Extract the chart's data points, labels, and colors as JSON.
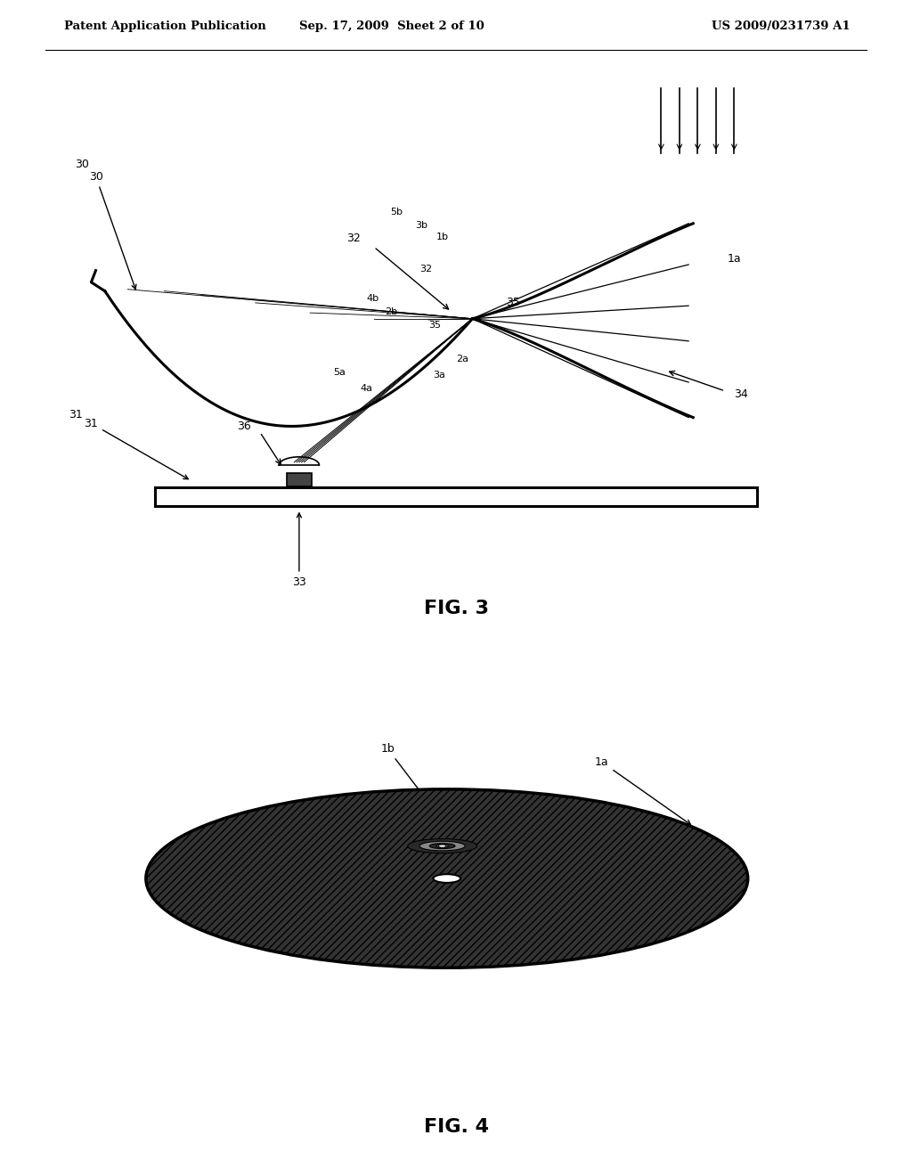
{
  "header_left": "Patent Application Publication",
  "header_mid": "Sep. 17, 2009  Sheet 2 of 10",
  "header_right": "US 2009/0231739 A1",
  "fig3_caption": "FIG. 3",
  "fig4_caption": "FIG. 4",
  "bg_color": "#ffffff"
}
